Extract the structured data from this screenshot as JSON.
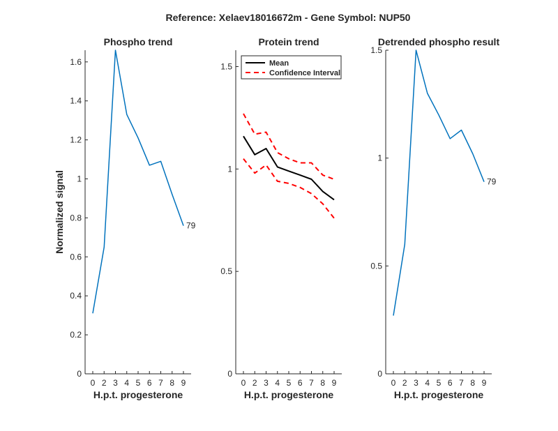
{
  "suptitle": "Reference:  Xelaev18016672m - Gene Symbol:  NUP50",
  "chart_data": [
    {
      "type": "line",
      "title": "Phospho trend",
      "xlabel": "H.p.t. progesterone",
      "ylabel": "Normalized signal",
      "x_ticks": [
        "0",
        "2",
        "3",
        "4",
        "5",
        "6",
        "7",
        "8",
        "9"
      ],
      "ylim": [
        0,
        1.66
      ],
      "y_ticks": [
        "0",
        "0.2",
        "0.4",
        "0.6",
        "0.8",
        "1",
        "1.2",
        "1.4",
        "1.6"
      ],
      "series": [
        {
          "color": "#0072BD",
          "values": [
            0.31,
            0.65,
            1.66,
            1.33,
            1.21,
            1.07,
            1.09,
            0.92,
            0.76
          ],
          "end_label": "79"
        }
      ]
    },
    {
      "type": "line",
      "title": "Protein trend",
      "xlabel": "H.p.t. progesterone",
      "ylabel": "",
      "x_ticks": [
        "0",
        "2",
        "3",
        "4",
        "5",
        "6",
        "7",
        "8",
        "9"
      ],
      "ylim": [
        0,
        1.58
      ],
      "y_ticks": [
        "0",
        "0.5",
        "1",
        "1.5"
      ],
      "legend": {
        "position": "top-left",
        "items": [
          "Mean",
          "Confidence Interval"
        ]
      },
      "series": [
        {
          "name": "Mean",
          "color": "#000000",
          "style": "solid",
          "values": [
            1.16,
            1.07,
            1.1,
            1.01,
            0.99,
            0.97,
            0.95,
            0.89,
            0.85
          ]
        },
        {
          "name": "Confidence Interval",
          "color": "#FF0000",
          "style": "dashed",
          "values": [
            1.27,
            1.17,
            1.18,
            1.08,
            1.05,
            1.03,
            1.03,
            0.97,
            0.95
          ]
        },
        {
          "name": "Confidence Interval",
          "color": "#FF0000",
          "style": "dashed",
          "values": [
            1.05,
            0.98,
            1.02,
            0.94,
            0.93,
            0.91,
            0.88,
            0.83,
            0.76
          ]
        }
      ]
    },
    {
      "type": "line",
      "title": "Detrended phospho result",
      "xlabel": "H.p.t. progesterone",
      "ylabel": "",
      "x_ticks": [
        "0",
        "2",
        "3",
        "4",
        "5",
        "6",
        "7",
        "8",
        "9"
      ],
      "ylim": [
        0,
        1.5
      ],
      "y_ticks": [
        "0",
        "0.5",
        "1",
        "1.5"
      ],
      "series": [
        {
          "color": "#0072BD",
          "values": [
            0.27,
            0.6,
            1.5,
            1.3,
            1.2,
            1.09,
            1.13,
            1.02,
            0.89
          ],
          "end_label": "79"
        }
      ]
    }
  ]
}
